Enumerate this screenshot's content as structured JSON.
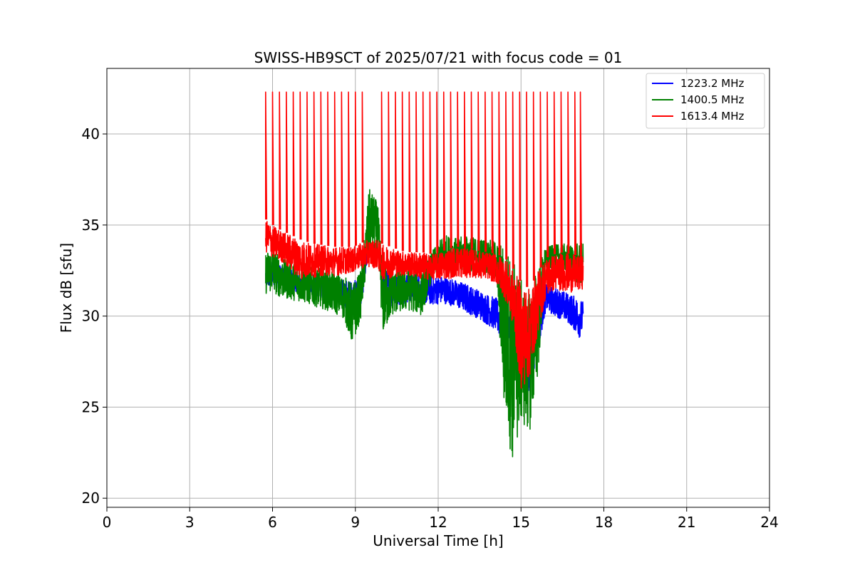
{
  "chart_data": {
    "type": "line",
    "title": "SWISS-HB9SCT of 2025/07/21 with focus code = 01",
    "xlabel": "Universal Time [h]",
    "ylabel": "Flux dB [sfu]",
    "xlim": [
      0,
      24
    ],
    "ylim": [
      19.5,
      43.6
    ],
    "xticks": [
      0,
      3,
      6,
      9,
      12,
      15,
      18,
      21,
      24
    ],
    "yticks": [
      20,
      25,
      30,
      35,
      40
    ],
    "grid": true,
    "legend_position": "top-right",
    "series": [
      {
        "name": "1223.2 MHz",
        "color": "#0000ff",
        "x": [
          5.75,
          6.0,
          6.3,
          6.6,
          7.0,
          7.4,
          7.8,
          8.2,
          8.6,
          8.9,
          9.2,
          9.5,
          9.8,
          10.0,
          10.3,
          10.6,
          11.0,
          11.4,
          11.8,
          12.2,
          12.6,
          13.0,
          13.4,
          13.8,
          14.1,
          14.4,
          14.7,
          15.0,
          15.3,
          15.6,
          15.9,
          16.2,
          16.5,
          16.8,
          17.1,
          17.25
        ],
        "min": [
          31.5,
          31.6,
          31.5,
          31.3,
          31.2,
          31.1,
          31.0,
          30.8,
          30.5,
          30.2,
          30.4,
          33.6,
          33.4,
          31.0,
          30.5,
          30.6,
          30.8,
          30.7,
          30.6,
          30.7,
          30.5,
          30.2,
          29.9,
          29.5,
          29.2,
          28.2,
          27.5,
          27.0,
          25.8,
          28.0,
          30.3,
          30.0,
          29.8,
          29.5,
          28.8,
          29.0
        ],
        "max": [
          32.8,
          33.0,
          32.8,
          32.6,
          32.4,
          32.4,
          32.3,
          32.2,
          32.0,
          31.9,
          32.2,
          34.0,
          33.9,
          32.6,
          32.4,
          32.3,
          32.4,
          32.3,
          32.2,
          32.2,
          32.0,
          31.8,
          31.5,
          31.2,
          31.0,
          30.5,
          30.0,
          29.8,
          29.5,
          30.5,
          31.8,
          31.6,
          31.4,
          31.2,
          31.0,
          30.8
        ]
      },
      {
        "name": "1400.5 MHz",
        "color": "#008000",
        "x": [
          5.75,
          6.0,
          6.3,
          6.6,
          7.0,
          7.4,
          7.8,
          8.2,
          8.6,
          8.9,
          9.2,
          9.5,
          9.8,
          10.0,
          10.3,
          10.6,
          11.0,
          11.4,
          11.8,
          12.2,
          12.6,
          13.0,
          13.4,
          13.8,
          14.1,
          14.4,
          14.7,
          15.0,
          15.3,
          15.6,
          15.9,
          16.2,
          16.5,
          16.8,
          17.1,
          17.25
        ],
        "min": [
          31.2,
          31.3,
          31.0,
          30.9,
          30.8,
          30.6,
          30.4,
          30.2,
          29.8,
          28.3,
          29.9,
          33.6,
          33.5,
          28.9,
          30.0,
          30.2,
          30.3,
          30.0,
          32.2,
          32.5,
          32.3,
          32.4,
          32.5,
          32.3,
          32.0,
          24.5,
          21.8,
          24.0,
          23.5,
          26.5,
          32.5,
          32.6,
          32.5,
          32.4,
          31.6,
          31.8
        ],
        "max": [
          33.5,
          33.8,
          33.2,
          33.0,
          32.8,
          32.7,
          32.6,
          32.4,
          32.2,
          31.8,
          32.5,
          37.0,
          36.3,
          32.8,
          32.6,
          32.5,
          32.6,
          32.4,
          33.6,
          34.5,
          34.3,
          34.4,
          34.3,
          34.2,
          34.1,
          34.0,
          33.5,
          32.0,
          31.5,
          32.8,
          33.8,
          33.9,
          34.0,
          33.9,
          34.0,
          34.0
        ]
      },
      {
        "name": "1613.4 MHz",
        "color": "#ff0000",
        "x": [
          5.75,
          6.0,
          6.3,
          6.6,
          7.0,
          7.4,
          7.8,
          8.2,
          8.6,
          8.9,
          9.2,
          9.5,
          9.8,
          10.0,
          10.3,
          10.6,
          11.0,
          11.4,
          11.8,
          12.2,
          12.6,
          13.0,
          13.4,
          13.8,
          14.1,
          14.4,
          14.7,
          15.0,
          15.3,
          15.6,
          15.9,
          16.2,
          16.5,
          16.8,
          17.1,
          17.25
        ],
        "min": [
          33.5,
          33.2,
          33.0,
          32.6,
          32.0,
          32.1,
          32.2,
          32.2,
          32.3,
          32.4,
          32.6,
          32.7,
          32.6,
          32.0,
          32.1,
          32.2,
          32.2,
          32.0,
          32.0,
          32.0,
          32.1,
          32.1,
          32.1,
          32.0,
          31.8,
          31.0,
          29.5,
          26.0,
          26.5,
          29.0,
          31.0,
          31.4,
          31.4,
          31.3,
          31.4,
          31.5
        ],
        "max": [
          35.3,
          35.0,
          34.7,
          34.5,
          34.2,
          34.0,
          33.9,
          33.8,
          33.8,
          33.8,
          34.0,
          34.2,
          34.2,
          33.9,
          33.8,
          33.6,
          33.5,
          33.5,
          33.4,
          33.6,
          33.8,
          33.8,
          33.6,
          33.5,
          33.4,
          33.2,
          32.6,
          31.8,
          31.5,
          32.4,
          33.2,
          33.4,
          33.5,
          33.4,
          33.3,
          33.4
        ]
      }
    ],
    "spikes": {
      "series": "1613.4 MHz",
      "peak": 42.3,
      "x": [
        5.75,
        6.0,
        6.25,
        6.5,
        6.75,
        7.0,
        7.25,
        7.5,
        7.75,
        8.0,
        8.25,
        8.5,
        8.75,
        9.0,
        9.25,
        9.95,
        10.2,
        10.45,
        10.7,
        10.95,
        11.2,
        11.45,
        11.7,
        11.95,
        12.2,
        12.45,
        12.7,
        12.95,
        13.2,
        13.45,
        13.7,
        13.95,
        14.2,
        14.45,
        14.7,
        14.95,
        15.2,
        15.45,
        15.7,
        15.95,
        16.2,
        16.45,
        16.7,
        16.95,
        17.15
      ]
    }
  }
}
